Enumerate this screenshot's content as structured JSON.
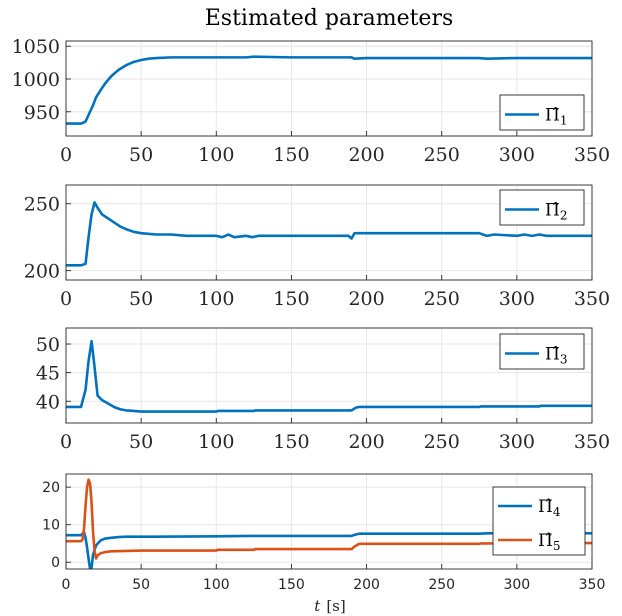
{
  "title": "Estimated parameters",
  "colors": {
    "blue": "#0072BD",
    "orange": "#D95319",
    "grid": "#e6e6e6",
    "axis": "#262626"
  },
  "chart_data": [
    {
      "type": "line",
      "xlim": [
        0,
        350
      ],
      "ylim": [
        913,
        1058
      ],
      "xticks": [
        0,
        50,
        100,
        150,
        200,
        250,
        300,
        350
      ],
      "yticks": [
        950,
        1000,
        1050
      ],
      "grid": true,
      "legend_position": "bottom-right",
      "series": [
        {
          "name_base": "Π̂",
          "name_sub": "1",
          "color": "#0072BD",
          "x": [
            0,
            10,
            13,
            16,
            18,
            20,
            23,
            26,
            30,
            35,
            40,
            45,
            50,
            55,
            60,
            70,
            80,
            100,
            120,
            125,
            150,
            190,
            192,
            200,
            250,
            275,
            280,
            300,
            315,
            350
          ],
          "y": [
            932,
            932,
            935,
            950,
            960,
            972,
            983,
            993,
            1004,
            1014,
            1021,
            1026,
            1029,
            1031,
            1032,
            1033,
            1033,
            1033,
            1033,
            1034,
            1033,
            1033,
            1031,
            1032,
            1032,
            1032,
            1031,
            1032,
            1032,
            1032
          ]
        }
      ]
    },
    {
      "type": "line",
      "xlim": [
        0,
        350
      ],
      "ylim": [
        193,
        264
      ],
      "xticks": [
        0,
        50,
        100,
        150,
        200,
        250,
        300,
        350
      ],
      "yticks": [
        200,
        250
      ],
      "grid": true,
      "legend_position": "top-right",
      "series": [
        {
          "name_base": "Π̂",
          "name_sub": "2",
          "color": "#0072BD",
          "x": [
            0,
            10,
            13,
            15,
            17,
            19,
            21,
            24,
            28,
            32,
            36,
            40,
            45,
            50,
            60,
            70,
            80,
            90,
            100,
            104,
            108,
            112,
            120,
            124,
            128,
            150,
            188,
            190,
            192,
            195,
            200,
            250,
            275,
            280,
            285,
            300,
            305,
            310,
            315,
            320,
            350
          ],
          "y": [
            204,
            204,
            205,
            225,
            242,
            251,
            247,
            242,
            239,
            236,
            233,
            231,
            229,
            228,
            227,
            227,
            226,
            226,
            226,
            225,
            227,
            225,
            226,
            225,
            226,
            226,
            226,
            224,
            228,
            228,
            228,
            228,
            228,
            226,
            227,
            226,
            227,
            226,
            227,
            226,
            226
          ]
        }
      ]
    },
    {
      "type": "line",
      "xlim": [
        0,
        350
      ],
      "ylim": [
        36.2,
        52.8
      ],
      "xticks": [
        0,
        50,
        100,
        150,
        200,
        250,
        300,
        350
      ],
      "yticks": [
        40,
        45,
        50
      ],
      "grid": true,
      "legend_position": "top-right",
      "series": [
        {
          "name_base": "Π̂",
          "name_sub": "3",
          "color": "#0072BD",
          "x": [
            0,
            10,
            13,
            15,
            17,
            19,
            21,
            24,
            28,
            32,
            36,
            40,
            45,
            50,
            60,
            100,
            101,
            125,
            126,
            190,
            193,
            195,
            200,
            275,
            276,
            315,
            316,
            350
          ],
          "y": [
            39,
            39,
            42,
            47,
            50.5,
            46,
            41,
            40.2,
            39.6,
            39,
            38.6,
            38.4,
            38.3,
            38.2,
            38.2,
            38.2,
            38.3,
            38.3,
            38.4,
            38.4,
            38.9,
            39,
            39,
            39,
            39.1,
            39.1,
            39.2,
            39.2
          ]
        }
      ]
    },
    {
      "type": "line",
      "xlim": [
        0,
        350
      ],
      "ylim": [
        -1.8,
        23.5
      ],
      "xticks": [
        0,
        50,
        100,
        150,
        200,
        250,
        300,
        350
      ],
      "yticks": [
        0,
        10,
        20
      ],
      "grid": true,
      "legend_position": "right",
      "series": [
        {
          "name_base": "Π̂",
          "name_sub": "4",
          "color": "#0072BD",
          "x": [
            0,
            10,
            12,
            13,
            14,
            15,
            16,
            17,
            18,
            20,
            23,
            26,
            30,
            35,
            40,
            50,
            60,
            100,
            120,
            125,
            150,
            190,
            192,
            195,
            200,
            250,
            275,
            280,
            300,
            350
          ],
          "y": [
            7.2,
            7.2,
            8,
            6.5,
            4,
            1,
            -1.8,
            -1.5,
            2,
            4.5,
            5.8,
            6.3,
            6.5,
            6.7,
            6.8,
            6.8,
            6.8,
            6.9,
            7,
            7,
            7,
            7,
            7.3,
            7.6,
            7.6,
            7.6,
            7.6,
            7.7,
            7.7,
            7.7
          ]
        },
        {
          "name_base": "Π̂",
          "name_sub": "5",
          "color": "#D95319",
          "x": [
            0,
            10,
            11,
            12,
            13,
            14,
            15,
            16,
            17,
            18,
            19,
            20,
            21,
            23,
            26,
            30,
            40,
            50,
            100,
            101,
            125,
            126,
            190,
            192,
            195,
            200,
            275,
            276,
            300,
            315,
            316,
            350
          ],
          "y": [
            5.6,
            5.6,
            6,
            9,
            15,
            20,
            22,
            21,
            16,
            8,
            3,
            1,
            1.8,
            2.4,
            2.7,
            2.9,
            3,
            3.1,
            3.1,
            3.3,
            3.3,
            3.5,
            3.5,
            4.2,
            4.9,
            4.9,
            4.9,
            5,
            5,
            5,
            5.1,
            5.1
          ]
        }
      ]
    }
  ],
  "xlabel_var": "t",
  "xlabel_unit": "[s]"
}
